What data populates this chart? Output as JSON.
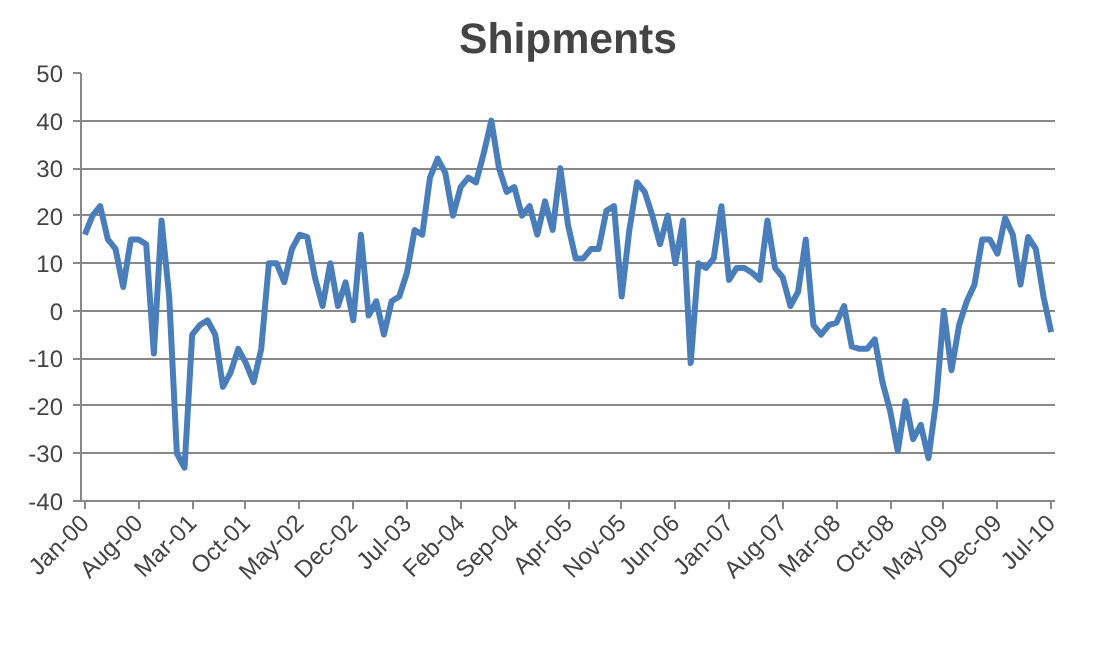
{
  "chart_data": {
    "type": "line",
    "title": "Shipments",
    "categories": [
      "Jan-00",
      null,
      null,
      null,
      null,
      null,
      null,
      "Aug-00",
      null,
      null,
      null,
      null,
      null,
      null,
      "Mar-01",
      null,
      null,
      null,
      null,
      null,
      null,
      "Oct-01",
      null,
      null,
      null,
      null,
      null,
      null,
      "May-02",
      null,
      null,
      null,
      null,
      null,
      null,
      "Dec-02",
      null,
      null,
      null,
      null,
      null,
      null,
      "Jul-03",
      null,
      null,
      null,
      null,
      null,
      null,
      "Feb-04",
      null,
      null,
      null,
      null,
      null,
      null,
      "Sep-04",
      null,
      null,
      null,
      null,
      null,
      null,
      "Apr-05",
      null,
      null,
      null,
      null,
      null,
      null,
      "Nov-05",
      null,
      null,
      null,
      null,
      null,
      null,
      "Jun-06",
      null,
      null,
      null,
      null,
      null,
      null,
      "Jan-07",
      null,
      null,
      null,
      null,
      null,
      null,
      "Aug-07",
      null,
      null,
      null,
      null,
      null,
      null,
      "Mar-08",
      null,
      null,
      null,
      null,
      null,
      null,
      "Oct-08",
      null,
      null,
      null,
      null,
      null,
      null,
      "May-09",
      null,
      null,
      null,
      null,
      null,
      null,
      "Dec-09",
      null,
      null,
      null,
      null,
      null,
      null,
      "Jul-10"
    ],
    "series": [
      {
        "color": "#4a7ebb",
        "values": [
          16,
          20,
          22,
          15,
          13,
          5,
          15,
          15,
          14,
          -9,
          19,
          3,
          -30,
          -33,
          -5,
          -3,
          -2,
          -5,
          -16,
          -13,
          -8,
          -11,
          -15,
          -8,
          10,
          10,
          6,
          13,
          16,
          15.5,
          7,
          1,
          10,
          1,
          6,
          -2,
          16,
          -1,
          2,
          -5,
          2,
          3,
          8,
          17,
          16,
          28,
          32,
          29,
          20,
          26,
          28,
          27,
          33,
          40,
          30,
          25,
          26,
          20,
          22,
          16,
          23,
          17,
          30,
          18,
          11,
          11,
          13,
          13,
          21,
          22,
          3,
          17,
          27,
          25,
          20,
          14,
          20,
          10,
          19,
          -11,
          10,
          9,
          11,
          22,
          6.5,
          9,
          9,
          8,
          6.5,
          19,
          9,
          7,
          1,
          4,
          15,
          -3,
          -5,
          -3,
          -2.5,
          1,
          -7.5,
          -8,
          -8,
          -6,
          -15,
          -21,
          -29.5,
          -19,
          -27,
          -24,
          -31,
          -19,
          0,
          -12.5,
          -3,
          2,
          5.5,
          15,
          15,
          12,
          19.5,
          16,
          5.5,
          15.5,
          13,
          3,
          -4.5
        ]
      }
    ],
    "ylim": [
      -40,
      50
    ],
    "yticks": [
      -40,
      -30,
      -20,
      -10,
      0,
      10,
      20,
      30,
      40,
      50
    ],
    "grid": "y",
    "marker": "none",
    "line_style": "solid"
  }
}
